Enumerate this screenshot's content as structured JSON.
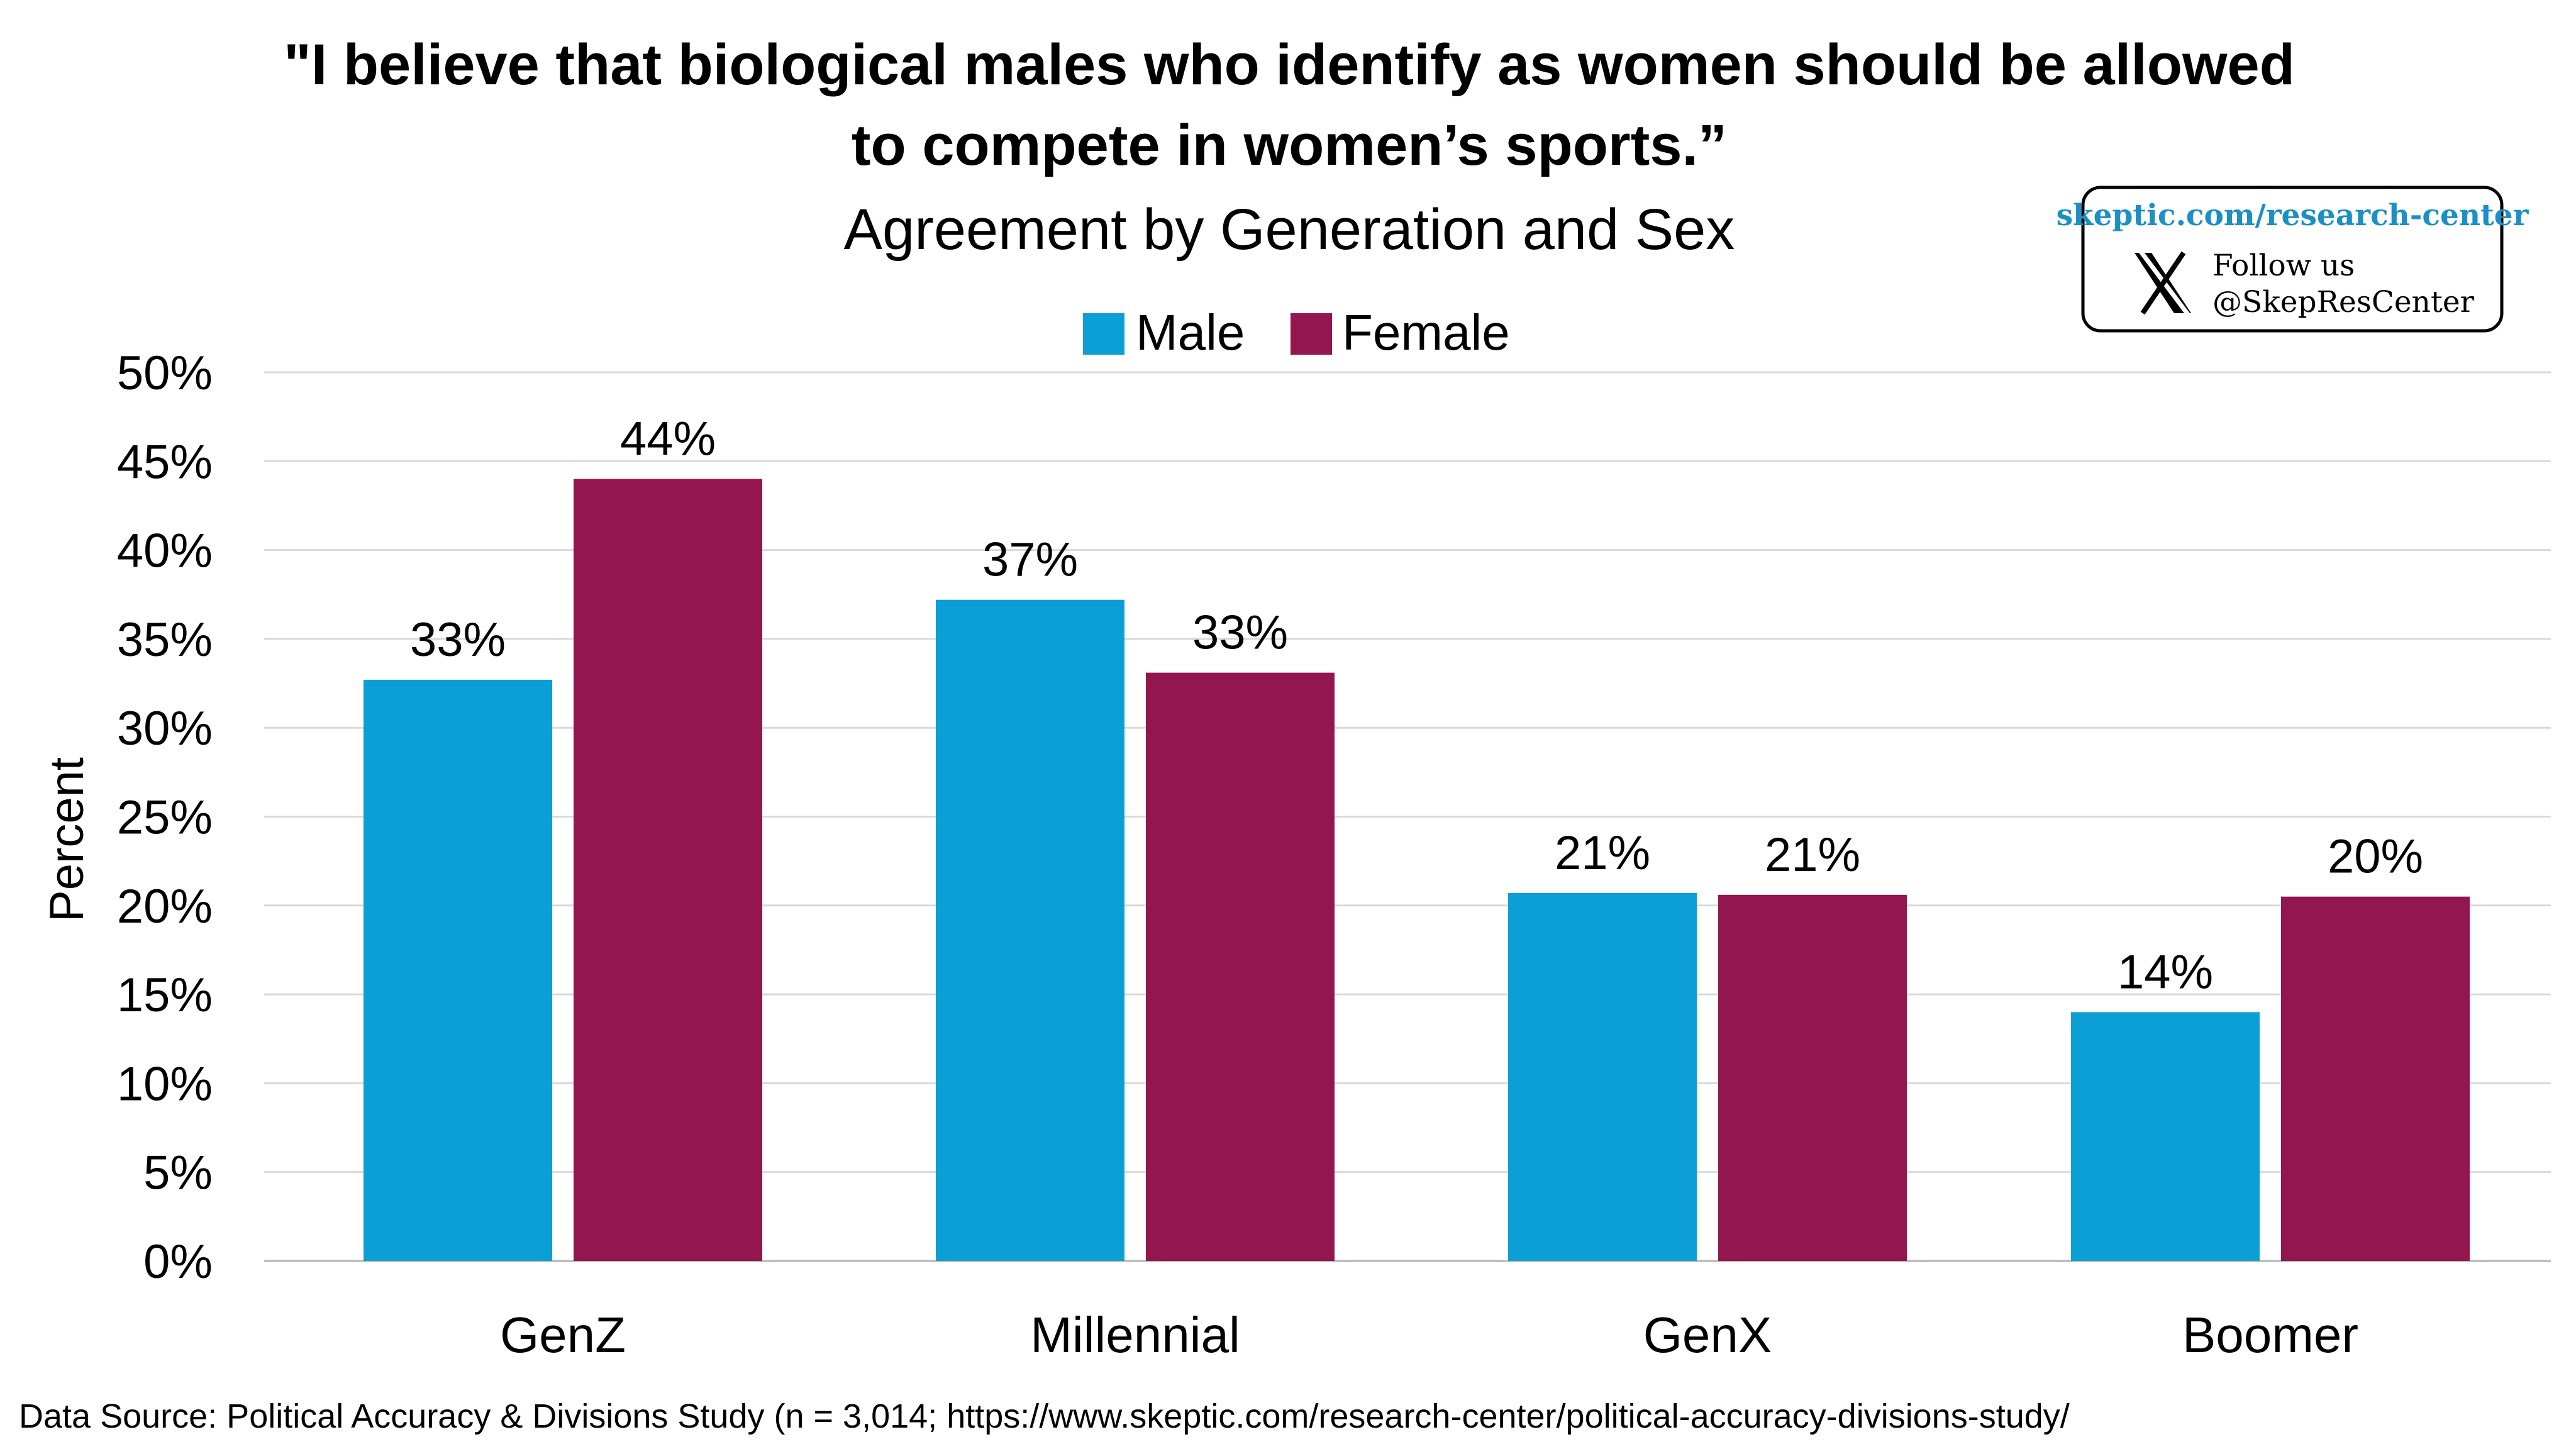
{
  "chart_data": {
    "type": "bar",
    "title_lines": [
      "\"I believe that biological males who identify as women should be allowed",
      "to compete in women’s sports.”"
    ],
    "subtitle": "Agreement by Generation and Sex",
    "ylabel": "Percent",
    "xlabel": "",
    "ylim": [
      0,
      50
    ],
    "y_ticks": [
      "0%",
      "5%",
      "10%",
      "15%",
      "20%",
      "25%",
      "30%",
      "35%",
      "40%",
      "45%",
      "50%"
    ],
    "grid": true,
    "legend_position": "top-center",
    "categories": [
      "GenZ",
      "Millennial",
      "GenX",
      "Boomer"
    ],
    "series": [
      {
        "name": "Male",
        "color": "#0C9FD6",
        "values": [
          32.7,
          37.2,
          20.7,
          14.0
        ],
        "labels": [
          "33%",
          "37%",
          "21%",
          "14%"
        ]
      },
      {
        "name": "Female",
        "color": "#94164F",
        "values": [
          44.0,
          33.1,
          20.6,
          20.5
        ],
        "labels": [
          "44%",
          "33%",
          "21%",
          "20%"
        ]
      }
    ]
  },
  "badge": {
    "link": "skeptic.com/research-center",
    "follow": "Follow us",
    "handle": "@SkepResCenter",
    "icon": "x-logo-icon"
  },
  "source": "Data Source: Political Accuracy & Divisions Study (n = 3,014; https://www.skeptic.com/research-center/political-accuracy-divisions-study/"
}
